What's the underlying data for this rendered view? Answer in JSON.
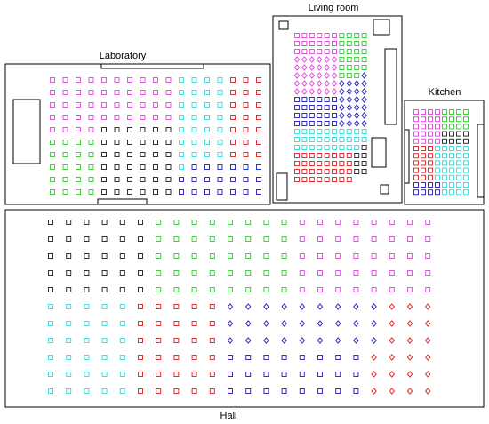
{
  "rooms": {
    "laboratory": {
      "name": "Laboratory"
    },
    "living_room": {
      "name": "Living room"
    },
    "kitchen": {
      "name": "Kitchen"
    },
    "hall": {
      "name": "Hall"
    }
  },
  "colors": {
    "magenta": "#e055e0",
    "cyan": "#40e0e0",
    "red": "#e03030",
    "black": "#303030",
    "green": "#40d040",
    "blue": "#3030c0"
  }
}
